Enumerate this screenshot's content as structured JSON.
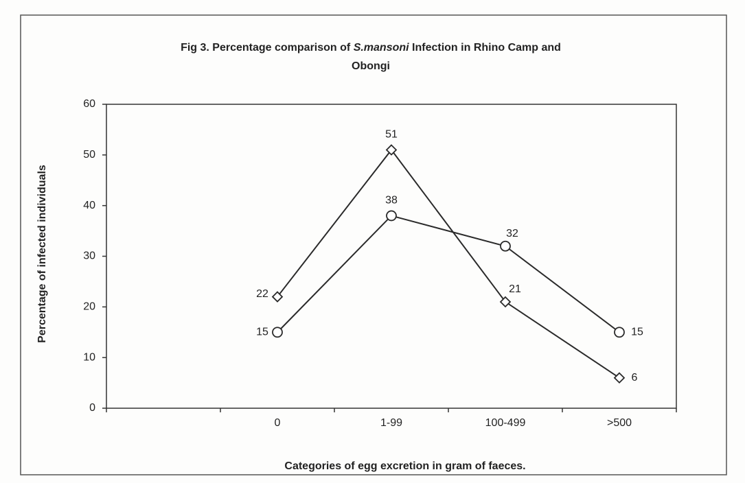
{
  "chart_data": {
    "type": "line",
    "title_parts": [
      "Fig 3. Percentage comparison of ",
      "S.mansoni",
      " Infection in Rhino Camp and",
      "Obongi"
    ],
    "xlabel": "Categories of egg excretion in gram of faeces.",
    "ylabel": "Percentage of infected individuals",
    "categories": [
      null,
      "0",
      "1-99",
      "100-499",
      ">500"
    ],
    "series": [
      {
        "marker": "diamond",
        "color": "#2a2a2a",
        "values": [
          null,
          22,
          51,
          21,
          6
        ]
      },
      {
        "marker": "circle",
        "color": "#2a2a2a",
        "values": [
          null,
          15,
          38,
          32,
          15
        ]
      }
    ],
    "ylim": [
      0,
      60
    ],
    "yticks": [
      0,
      10,
      20,
      30,
      40,
      50,
      60
    ],
    "grid": false
  }
}
